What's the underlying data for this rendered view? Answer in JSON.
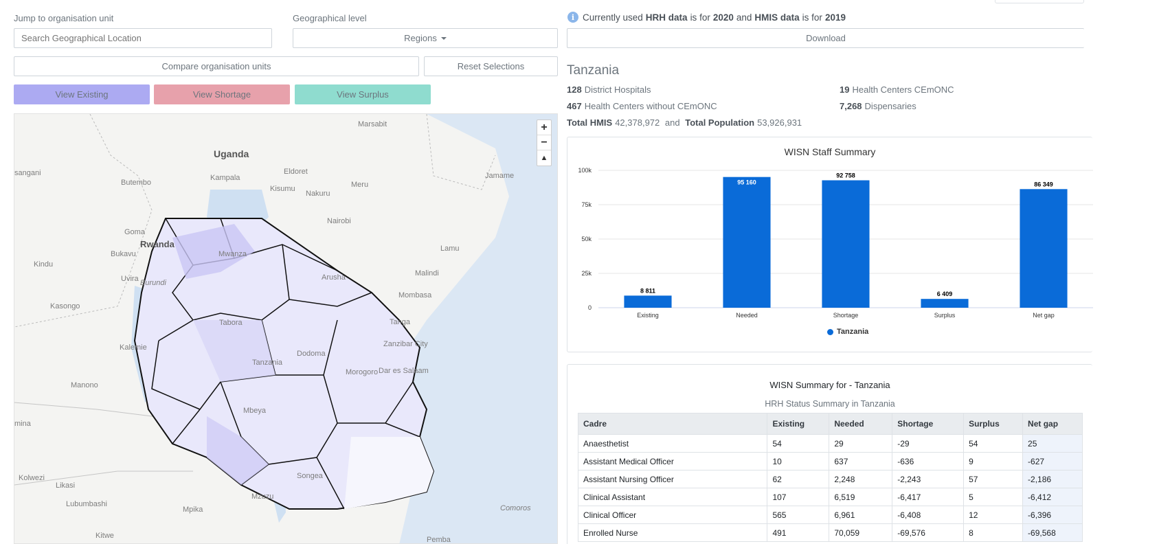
{
  "search": {
    "label": "Jump to organisation unit",
    "placeholder": "Search Geographical Location"
  },
  "geo_level": {
    "label": "Geographical level",
    "selected": "Regions"
  },
  "buttons": {
    "compare": "Compare organisation units",
    "reset": "Reset Selections",
    "view_existing": "View Existing",
    "view_shortage": "View Shortage",
    "view_surplus": "View Surplus",
    "download": "Download"
  },
  "colors": {
    "view_existing": "#acaaf2",
    "view_shortage": "#e7a1ab",
    "view_surplus": "#8fdccf",
    "bar": "#0a6bd8"
  },
  "info": {
    "prefix": "Currently used",
    "hrh": "HRH data",
    "is_for_1": "is for",
    "hrh_year": "2020",
    "and": "and",
    "hmis": "HMIS data",
    "is_for_2": "is for",
    "hmis_year": "2019"
  },
  "region": {
    "title": "Tanzania",
    "district_hospitals_count": "128",
    "district_hospitals_label": "District Hospitals",
    "hc_cemonc_count": "19",
    "hc_cemonc_label": "Health Centers CEmONC",
    "hc_without_count": "467",
    "hc_without_label": "Health Centers without CEmONC",
    "dispensaries_count": "7,268",
    "dispensaries_label": "Dispensaries",
    "total_hmis_label": "Total HMIS",
    "total_hmis": "42,378,972",
    "and": "and",
    "total_pop_label": "Total Population",
    "total_pop": "53,926,931"
  },
  "map": {
    "places": [
      "Marsabit",
      "Uganda",
      "sangani",
      "Butembo",
      "Eldoret",
      "Kampala",
      "Meru",
      "Jamame",
      "Kisumu",
      "Nakuru",
      "Nairobi",
      "Goma",
      "Rwanda",
      "Bukavu",
      "Kindu",
      "Uvira",
      "Burundi",
      "Mwanza",
      "Lamu",
      "Arusha",
      "Malindi",
      "Mombasa",
      "Kasongo",
      "Tabora",
      "Tanga",
      "Kalemie",
      "Zanzibar City",
      "Tanzania",
      "Dodoma",
      "Dar es Salaam",
      "Morogoro",
      "Manono",
      "Mbeya",
      "mina",
      "Songea",
      "Kolwezi",
      "Likasi",
      "Lubumbashi",
      "Mpika",
      "Mzuzu",
      "Comoros",
      "Kitwe",
      "Pemba"
    ]
  },
  "chart_data": {
    "type": "bar",
    "title": "WISN Staff Summary",
    "categories": [
      "Existing",
      "Needed",
      "Shortage",
      "Surplus",
      "Net gap"
    ],
    "series": [
      {
        "name": "Tanzania",
        "values": [
          8811,
          95160,
          92758,
          6409,
          86349
        ]
      }
    ],
    "data_labels": [
      "8 811",
      "95 160",
      "92 758",
      "6 409",
      "86 349"
    ],
    "yticks": [
      "0",
      "25k",
      "50k",
      "75k",
      "100k"
    ],
    "ylim": [
      0,
      100000
    ],
    "legend": "bottom-center",
    "grid": true
  },
  "table": {
    "title": "WISN Summary for - Tanzania",
    "subtitle": "HRH Status Summary in Tanzania",
    "headers": [
      "Cadre",
      "Existing",
      "Needed",
      "Shortage",
      "Surplus",
      "Net gap"
    ],
    "rows": [
      [
        "Anaesthetist",
        "54",
        "29",
        "-29",
        "54",
        "25"
      ],
      [
        "Assistant Medical Officer",
        "10",
        "637",
        "-636",
        "9",
        "-627"
      ],
      [
        "Assistant Nursing Officer",
        "62",
        "2,248",
        "-2,243",
        "57",
        "-2,186"
      ],
      [
        "Clinical Assistant",
        "107",
        "6,519",
        "-6,417",
        "5",
        "-6,412"
      ],
      [
        "Clinical Officer",
        "565",
        "6,961",
        "-6,408",
        "12",
        "-6,396"
      ],
      [
        "Enrolled Nurse",
        "491",
        "70,059",
        "-69,576",
        "8",
        "-69,568"
      ]
    ]
  }
}
